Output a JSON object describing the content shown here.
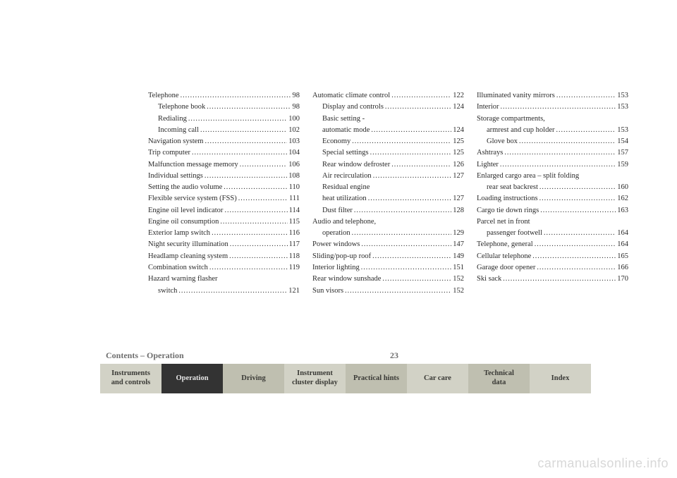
{
  "footer": {
    "caption": "Contents – Operation",
    "page_number": "23"
  },
  "tabs": [
    {
      "label": "Instruments\nand controls",
      "bg": "#d2d2c6",
      "fg": "#3a3a36"
    },
    {
      "label": "Operation",
      "bg": "#333333",
      "fg": "#e5e5e5"
    },
    {
      "label": "Driving",
      "bg": "#bfbfb0",
      "fg": "#3a3a36"
    },
    {
      "label": "Instrument\ncluster display",
      "bg": "#d2d2c6",
      "fg": "#3a3a36"
    },
    {
      "label": "Practical hints",
      "bg": "#bfbfb0",
      "fg": "#3a3a36"
    },
    {
      "label": "Car care",
      "bg": "#d2d2c6",
      "fg": "#3a3a36"
    },
    {
      "label": "Technical\ndata",
      "bg": "#bfbfb0",
      "fg": "#3a3a36"
    },
    {
      "label": "Index",
      "bg": "#d2d2c6",
      "fg": "#3a3a36"
    }
  ],
  "columns": [
    [
      {
        "label": "Telephone",
        "page": "98",
        "indent": 0
      },
      {
        "label": "Telephone book",
        "page": "98",
        "indent": 1
      },
      {
        "label": "Redialing",
        "page": "100",
        "indent": 1
      },
      {
        "label": "Incoming call",
        "page": "102",
        "indent": 1
      },
      {
        "label": "Navigation system",
        "page": "103",
        "indent": 0
      },
      {
        "label": "Trip computer",
        "page": "104",
        "indent": 0
      },
      {
        "label": "Malfunction message memory",
        "page": "106",
        "indent": 0
      },
      {
        "label": "Individual settings",
        "page": "108",
        "indent": 0
      },
      {
        "label": "Setting the audio volume",
        "page": "110",
        "indent": 0
      },
      {
        "label": "Flexible service system (FSS)",
        "page": "111",
        "indent": 0
      },
      {
        "label": "Engine oil level indicator",
        "page": "114",
        "indent": 0
      },
      {
        "label": "Engine oil consumption",
        "page": "115",
        "indent": 0
      },
      {
        "label": "Exterior lamp switch",
        "page": "116",
        "indent": 0
      },
      {
        "label": "Night security illumination",
        "page": "117",
        "indent": 0
      },
      {
        "label": "Headlamp cleaning system",
        "page": "118",
        "indent": 0
      },
      {
        "label": "Combination switch",
        "page": "119",
        "indent": 0
      },
      {
        "label": "Hazard warning flasher",
        "page": "",
        "indent": 0,
        "nodots": true
      },
      {
        "label": "switch",
        "page": "121",
        "indent": 1
      }
    ],
    [
      {
        "label": "Automatic climate control",
        "page": "122",
        "indent": 0
      },
      {
        "label": "Display and controls",
        "page": "124",
        "indent": 1
      },
      {
        "label": "Basic setting -",
        "page": "",
        "indent": 1,
        "nodots": true
      },
      {
        "label": "automatic mode",
        "page": "124",
        "indent": 1
      },
      {
        "label": "Economy",
        "page": "125",
        "indent": 1
      },
      {
        "label": "Special settings",
        "page": "125",
        "indent": 1
      },
      {
        "label": "Rear window defroster",
        "page": "126",
        "indent": 1
      },
      {
        "label": "Air recirculation",
        "page": "127",
        "indent": 1
      },
      {
        "label": "Residual engine",
        "page": "",
        "indent": 1,
        "nodots": true
      },
      {
        "label": "heat utilization",
        "page": "127",
        "indent": 1
      },
      {
        "label": "Dust filter",
        "page": "128",
        "indent": 1
      },
      {
        "label": "Audio and telephone,",
        "page": "",
        "indent": 0,
        "nodots": true
      },
      {
        "label": "operation",
        "page": "129",
        "indent": 1
      },
      {
        "label": "Power windows",
        "page": "147",
        "indent": 0
      },
      {
        "label": "Sliding/pop-up roof",
        "page": "149",
        "indent": 0
      },
      {
        "label": "Interior lighting",
        "page": "151",
        "indent": 0
      },
      {
        "label": "Rear window sunshade",
        "page": "152",
        "indent": 0
      },
      {
        "label": "Sun visors",
        "page": "152",
        "indent": 0
      }
    ],
    [
      {
        "label": "Illuminated vanity mirrors",
        "page": "153",
        "indent": 0
      },
      {
        "label": "Interior",
        "page": "153",
        "indent": 0
      },
      {
        "label": "Storage compartments,",
        "page": "",
        "indent": 0,
        "nodots": true
      },
      {
        "label": "armrest and cup holder",
        "page": "153",
        "indent": 1
      },
      {
        "label": "Glove box",
        "page": "154",
        "indent": 1
      },
      {
        "label": "Ashtrays",
        "page": "157",
        "indent": 0
      },
      {
        "label": "Lighter",
        "page": "159",
        "indent": 0
      },
      {
        "label": "Enlarged cargo area – split folding",
        "page": "",
        "indent": 0,
        "nodots": true
      },
      {
        "label": "rear seat backrest",
        "page": "160",
        "indent": 1
      },
      {
        "label": "Loading instructions",
        "page": "162",
        "indent": 0
      },
      {
        "label": "Cargo tie down rings",
        "page": "163",
        "indent": 0
      },
      {
        "label": "Parcel net in front",
        "page": "",
        "indent": 0,
        "nodots": true
      },
      {
        "label": "passenger footwell",
        "page": "164",
        "indent": 1
      },
      {
        "label": "Telephone, general",
        "page": "164",
        "indent": 0
      },
      {
        "label": "Cellular telephone",
        "page": "165",
        "indent": 0
      },
      {
        "label": "Garage door opener",
        "page": "166",
        "indent": 0
      },
      {
        "label": "Ski sack",
        "page": "170",
        "indent": 0
      }
    ]
  ],
  "watermark": "carmanualsonline.info"
}
